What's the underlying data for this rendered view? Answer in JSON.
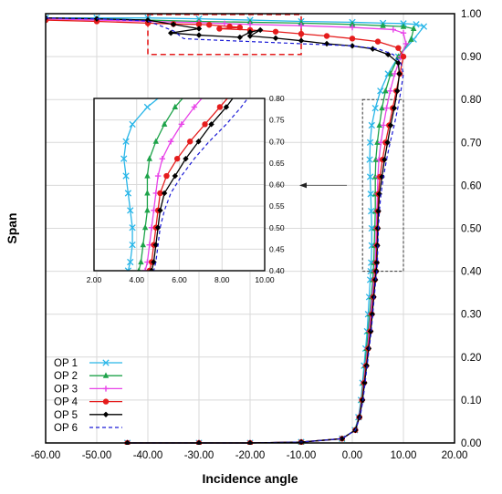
{
  "chart_data": {
    "type": "line",
    "xlabel": "Incidence angle",
    "ylabel": "Span",
    "xlim": [
      -60,
      20
    ],
    "ylim": [
      0,
      1
    ],
    "x_ticks": [
      "-60.00",
      "-50.00",
      "-40.00",
      "-30.00",
      "-20.00",
      "-10.00",
      "0.00",
      "10.00",
      "20.00"
    ],
    "y_ticks": [
      "0.00",
      "0.10",
      "0.20",
      "0.30",
      "0.40",
      "0.50",
      "0.60",
      "0.70",
      "0.80",
      "0.90",
      "1.00"
    ],
    "grid": true,
    "legend_position": "bottom-left",
    "series": [
      {
        "name": "OP 1",
        "color": "#29b6e8",
        "marker": "x",
        "dashed": false,
        "points": [
          [
            -60,
            0.99
          ],
          [
            -50,
            0.99
          ],
          [
            -40,
            0.99
          ],
          [
            -30,
            0.988
          ],
          [
            -20,
            0.985
          ],
          [
            -10,
            0.982
          ],
          [
            0,
            0.98
          ],
          [
            6,
            0.978
          ],
          [
            10,
            0.977
          ],
          [
            12.5,
            0.975
          ],
          [
            14,
            0.97
          ],
          [
            12,
            0.94
          ],
          [
            9,
            0.9
          ],
          [
            7,
            0.86
          ],
          [
            5.5,
            0.82
          ],
          [
            4.5,
            0.78
          ],
          [
            3.8,
            0.74
          ],
          [
            3.5,
            0.7
          ],
          [
            3.4,
            0.66
          ],
          [
            3.5,
            0.62
          ],
          [
            3.6,
            0.58
          ],
          [
            3.7,
            0.54
          ],
          [
            3.8,
            0.5
          ],
          [
            3.8,
            0.46
          ],
          [
            3.7,
            0.42
          ],
          [
            3.6,
            0.4
          ],
          [
            3.5,
            0.38
          ],
          [
            3.3,
            0.34
          ],
          [
            3.1,
            0.3
          ],
          [
            2.9,
            0.26
          ],
          [
            2.6,
            0.22
          ],
          [
            2.3,
            0.18
          ],
          [
            2.0,
            0.14
          ],
          [
            1.7,
            0.1
          ],
          [
            1.2,
            0.06
          ],
          [
            0.5,
            0.03
          ],
          [
            -2,
            0.01
          ],
          [
            -10,
            0.002
          ],
          [
            -20,
            0
          ],
          [
            -30,
            0
          ],
          [
            -44,
            0
          ]
        ]
      },
      {
        "name": "OP 2",
        "color": "#1ea34a",
        "marker": "triangle",
        "dashed": false,
        "points": [
          [
            -60,
            0.99
          ],
          [
            -50,
            0.988
          ],
          [
            -40,
            0.985
          ],
          [
            -30,
            0.982
          ],
          [
            -20,
            0.98
          ],
          [
            -10,
            0.978
          ],
          [
            0,
            0.975
          ],
          [
            6,
            0.972
          ],
          [
            10,
            0.97
          ],
          [
            12,
            0.965
          ],
          [
            11.5,
            0.94
          ],
          [
            9,
            0.9
          ],
          [
            7.5,
            0.86
          ],
          [
            6.5,
            0.82
          ],
          [
            5.8,
            0.78
          ],
          [
            5.3,
            0.74
          ],
          [
            4.9,
            0.7
          ],
          [
            4.6,
            0.66
          ],
          [
            4.5,
            0.62
          ],
          [
            4.5,
            0.58
          ],
          [
            4.5,
            0.54
          ],
          [
            4.4,
            0.5
          ],
          [
            4.3,
            0.46
          ],
          [
            4.2,
            0.42
          ],
          [
            4.1,
            0.4
          ],
          [
            4.0,
            0.38
          ],
          [
            3.7,
            0.34
          ],
          [
            3.4,
            0.3
          ],
          [
            3.1,
            0.26
          ],
          [
            2.8,
            0.22
          ],
          [
            2.5,
            0.18
          ],
          [
            2.1,
            0.14
          ],
          [
            1.8,
            0.1
          ],
          [
            1.3,
            0.06
          ],
          [
            0.5,
            0.03
          ],
          [
            -2,
            0.01
          ],
          [
            -10,
            0.002
          ],
          [
            -20,
            0
          ],
          [
            -30,
            0
          ],
          [
            -44,
            0
          ]
        ]
      },
      {
        "name": "OP 3",
        "color": "#e843e8",
        "marker": "plus",
        "dashed": false,
        "points": [
          [
            -60,
            0.988
          ],
          [
            -50,
            0.985
          ],
          [
            -40,
            0.982
          ],
          [
            -30,
            0.979
          ],
          [
            -25,
            0.977
          ],
          [
            -20,
            0.975
          ],
          [
            -10,
            0.972
          ],
          [
            0,
            0.968
          ],
          [
            8,
            0.963
          ],
          [
            10,
            0.955
          ],
          [
            10.5,
            0.93
          ],
          [
            9.5,
            0.9
          ],
          [
            8.3,
            0.86
          ],
          [
            7.4,
            0.82
          ],
          [
            6.7,
            0.78
          ],
          [
            6.1,
            0.74
          ],
          [
            5.6,
            0.7
          ],
          [
            5.2,
            0.66
          ],
          [
            5.0,
            0.62
          ],
          [
            4.9,
            0.58
          ],
          [
            4.8,
            0.54
          ],
          [
            4.7,
            0.5
          ],
          [
            4.6,
            0.46
          ],
          [
            4.5,
            0.42
          ],
          [
            4.4,
            0.4
          ],
          [
            4.2,
            0.38
          ],
          [
            3.9,
            0.34
          ],
          [
            3.6,
            0.3
          ],
          [
            3.3,
            0.26
          ],
          [
            3.0,
            0.22
          ],
          [
            2.6,
            0.18
          ],
          [
            2.2,
            0.14
          ],
          [
            1.9,
            0.1
          ],
          [
            1.3,
            0.06
          ],
          [
            0.6,
            0.03
          ],
          [
            -2,
            0.01
          ],
          [
            -10,
            0.002
          ],
          [
            -20,
            0
          ],
          [
            -30,
            0
          ],
          [
            -44,
            0
          ]
        ]
      },
      {
        "name": "OP 4",
        "color": "#e51c1c",
        "marker": "circle",
        "dashed": false,
        "points": [
          [
            -60,
            0.985
          ],
          [
            -50,
            0.982
          ],
          [
            -40,
            0.978
          ],
          [
            -35,
            0.976
          ],
          [
            -30,
            0.975
          ],
          [
            -28,
            0.974
          ],
          [
            -24,
            0.97
          ],
          [
            -22,
            0.968
          ],
          [
            -26,
            0.965
          ],
          [
            -20,
            0.962
          ],
          [
            -15,
            0.958
          ],
          [
            -10,
            0.953
          ],
          [
            -5,
            0.948
          ],
          [
            0,
            0.942
          ],
          [
            5,
            0.935
          ],
          [
            9,
            0.92
          ],
          [
            10,
            0.9
          ],
          [
            9.3,
            0.86
          ],
          [
            8.6,
            0.82
          ],
          [
            7.9,
            0.78
          ],
          [
            7.2,
            0.74
          ],
          [
            6.5,
            0.7
          ],
          [
            5.9,
            0.66
          ],
          [
            5.4,
            0.62
          ],
          [
            5.1,
            0.58
          ],
          [
            5.0,
            0.54
          ],
          [
            4.9,
            0.5
          ],
          [
            4.8,
            0.46
          ],
          [
            4.7,
            0.42
          ],
          [
            4.6,
            0.4
          ],
          [
            4.4,
            0.38
          ],
          [
            4.1,
            0.34
          ],
          [
            3.8,
            0.3
          ],
          [
            3.5,
            0.26
          ],
          [
            3.1,
            0.22
          ],
          [
            2.7,
            0.18
          ],
          [
            2.3,
            0.14
          ],
          [
            1.9,
            0.1
          ],
          [
            1.4,
            0.06
          ],
          [
            0.6,
            0.03
          ],
          [
            -2,
            0.01
          ],
          [
            -10,
            0.002
          ],
          [
            -20,
            0
          ],
          [
            -30,
            0
          ],
          [
            -44,
            0
          ]
        ]
      },
      {
        "name": "OP 5",
        "color": "#000000",
        "marker": "diamond",
        "dashed": false,
        "points": [
          [
            -60,
            0.99
          ],
          [
            -50,
            0.988
          ],
          [
            -40,
            0.985
          ],
          [
            -35,
            0.975
          ],
          [
            -30,
            0.965
          ],
          [
            -35.5,
            0.955
          ],
          [
            -30,
            0.95
          ],
          [
            -22,
            0.945
          ],
          [
            -20,
            0.957
          ],
          [
            -18,
            0.962
          ],
          [
            -20,
            0.948
          ],
          [
            -15,
            0.943
          ],
          [
            -10,
            0.937
          ],
          [
            -5,
            0.93
          ],
          [
            0,
            0.925
          ],
          [
            4,
            0.918
          ],
          [
            7,
            0.905
          ],
          [
            9,
            0.885
          ],
          [
            9.2,
            0.86
          ],
          [
            8.8,
            0.82
          ],
          [
            8.2,
            0.78
          ],
          [
            7.5,
            0.74
          ],
          [
            6.9,
            0.7
          ],
          [
            6.3,
            0.66
          ],
          [
            5.8,
            0.62
          ],
          [
            5.3,
            0.58
          ],
          [
            5.1,
            0.54
          ],
          [
            5.0,
            0.5
          ],
          [
            4.9,
            0.46
          ],
          [
            4.8,
            0.42
          ],
          [
            4.7,
            0.4
          ],
          [
            4.5,
            0.38
          ],
          [
            4.2,
            0.34
          ],
          [
            3.9,
            0.3
          ],
          [
            3.6,
            0.26
          ],
          [
            3.2,
            0.22
          ],
          [
            2.8,
            0.18
          ],
          [
            2.4,
            0.14
          ],
          [
            2.0,
            0.1
          ],
          [
            1.4,
            0.06
          ],
          [
            0.6,
            0.03
          ],
          [
            -2,
            0.01
          ],
          [
            -10,
            0.002
          ],
          [
            -20,
            0
          ],
          [
            -30,
            0
          ],
          [
            -44,
            0
          ]
        ]
      },
      {
        "name": "OP 6",
        "color": "#1a1ad6",
        "marker": "none",
        "dashed": true,
        "points": [
          [
            -60,
            0.99
          ],
          [
            -50,
            0.988
          ],
          [
            -40,
            0.983
          ],
          [
            -35,
            0.96
          ],
          [
            -33,
            0.942
          ],
          [
            -30,
            0.94
          ],
          [
            -20,
            0.935
          ],
          [
            -10,
            0.93
          ],
          [
            0,
            0.925
          ],
          [
            5,
            0.918
          ],
          [
            8,
            0.905
          ],
          [
            9.5,
            0.885
          ],
          [
            10,
            0.86
          ],
          [
            9.5,
            0.82
          ],
          [
            8.9,
            0.78
          ],
          [
            8.2,
            0.74
          ],
          [
            7.4,
            0.7
          ],
          [
            6.7,
            0.66
          ],
          [
            6.1,
            0.62
          ],
          [
            5.6,
            0.58
          ],
          [
            5.3,
            0.54
          ],
          [
            5.1,
            0.5
          ],
          [
            5.0,
            0.46
          ],
          [
            4.9,
            0.42
          ],
          [
            4.8,
            0.4
          ],
          [
            4.6,
            0.38
          ],
          [
            4.3,
            0.34
          ],
          [
            4.0,
            0.3
          ],
          [
            3.7,
            0.26
          ],
          [
            3.3,
            0.22
          ],
          [
            2.9,
            0.18
          ],
          [
            2.5,
            0.14
          ],
          [
            2.1,
            0.1
          ],
          [
            1.5,
            0.06
          ],
          [
            0.6,
            0.03
          ],
          [
            -2,
            0.01
          ],
          [
            -10,
            0.002
          ],
          [
            -20,
            0
          ],
          [
            -30,
            0
          ],
          [
            -44,
            0
          ]
        ]
      }
    ],
    "inset": {
      "xlim": [
        2,
        10
      ],
      "ylim": [
        0.4,
        0.8
      ],
      "x_ticks": [
        "2.00",
        "4.00",
        "6.00",
        "8.00",
        "10.00"
      ],
      "y_ticks": [
        "0.40",
        "0.45",
        "0.50",
        "0.55",
        "0.60",
        "0.65",
        "0.70",
        "0.75",
        "0.80"
      ]
    },
    "zoom_regions": [
      {
        "color": "#e51c1c",
        "dashed": true,
        "xlim": [
          -40,
          -10
        ],
        "ylim": [
          0.905,
          0.998
        ]
      },
      {
        "color": "#333333",
        "dashed": true,
        "xlim": [
          2,
          10
        ],
        "ylim": [
          0.4,
          0.8
        ]
      }
    ]
  }
}
